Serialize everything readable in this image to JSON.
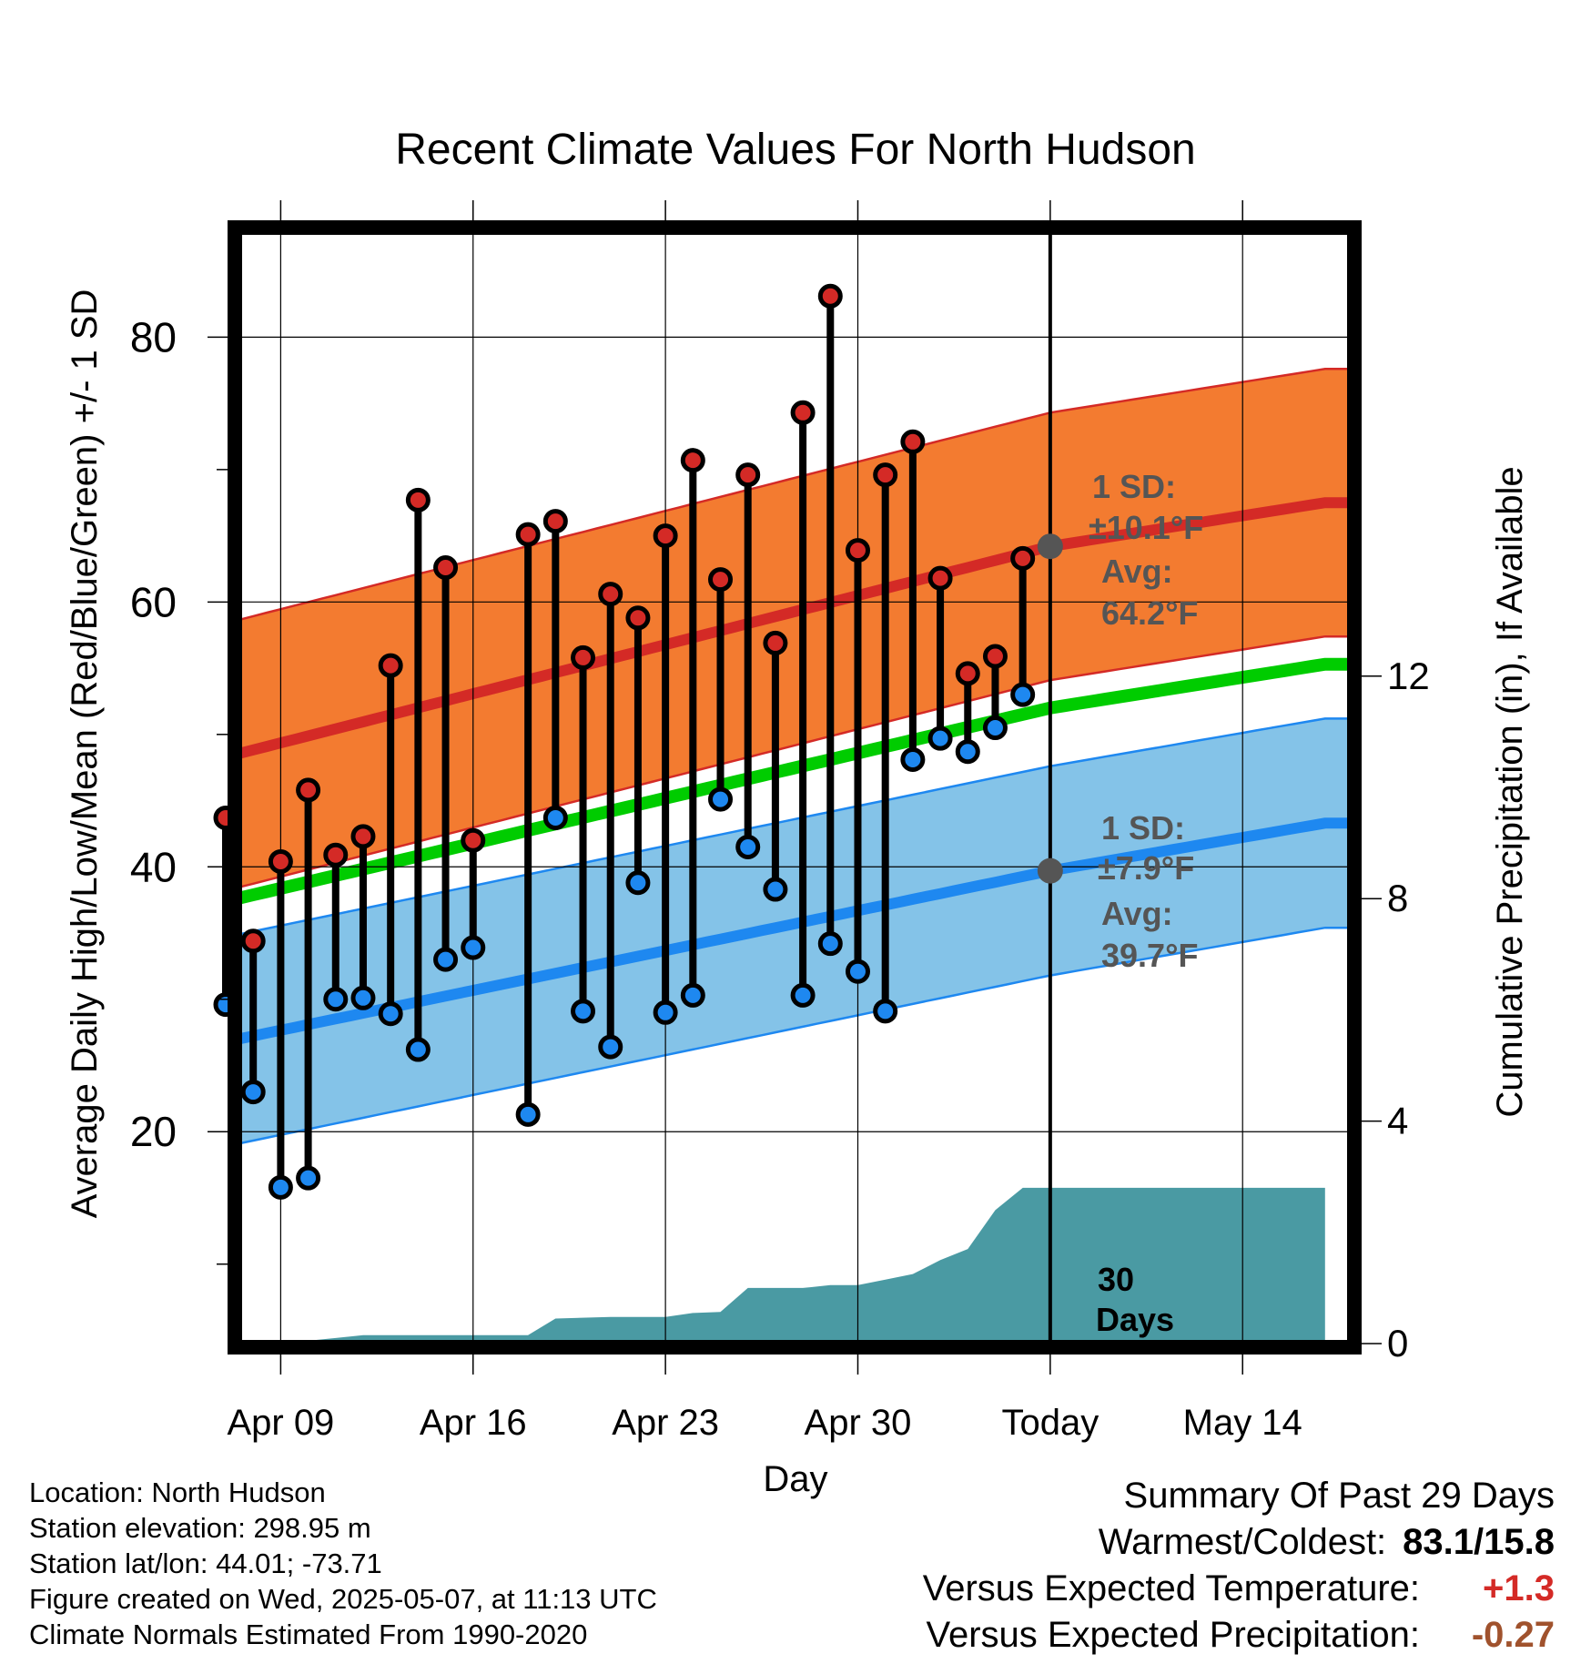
{
  "chart_data": {
    "type": "line",
    "title": "Recent Climate Values For North Hudson",
    "xlabel": "Day",
    "ylabel": "Average Daily High/Low/Mean (Red/Blue/Green) +/- 1 SD",
    "y2label": "Cumulative Precipitation (in), If Available",
    "x_range_days": [
      -30,
      11
    ],
    "x_tick_labels": [
      {
        "day": -28,
        "label": "Apr 09"
      },
      {
        "day": -21,
        "label": "Apr 16"
      },
      {
        "day": -14,
        "label": "Apr 23"
      },
      {
        "day": -7,
        "label": "Apr 30"
      },
      {
        "day": 0,
        "label": "Today"
      },
      {
        "day": 7,
        "label": "May 14"
      }
    ],
    "ylim": [
      4,
      88
    ],
    "y_ticks": [
      20,
      40,
      60,
      80
    ],
    "y2lim": [
      0,
      20
    ],
    "y2_ticks": [
      0,
      4,
      8,
      12
    ],
    "grid": true,
    "today_line_day": 0,
    "observed_days": [
      -30,
      -29,
      -28,
      -27,
      -26,
      -25,
      -24,
      -23,
      -22,
      -21,
      -19,
      -18,
      -17,
      -16,
      -15,
      -14,
      -13,
      -12,
      -11,
      -10,
      -9,
      -8,
      -7,
      -6,
      -5,
      -4,
      -3,
      -2,
      -1
    ],
    "series": [
      {
        "name": "High",
        "color": "#d62728",
        "values": [
          43.7,
          34.4,
          40.4,
          45.8,
          40.9,
          42.3,
          55.2,
          67.7,
          62.6,
          42.0,
          65.1,
          66.1,
          55.8,
          60.6,
          58.8,
          65.0,
          70.7,
          61.7,
          69.6,
          56.9,
          74.3,
          83.1,
          63.9,
          69.6,
          72.1,
          61.8,
          54.6,
          55.9,
          63.3
        ]
      },
      {
        "name": "Low",
        "color": "#1e88e5",
        "values": [
          29.6,
          23.0,
          15.8,
          16.5,
          30.0,
          30.1,
          28.9,
          26.2,
          33.0,
          33.9,
          21.3,
          43.7,
          29.1,
          26.4,
          38.8,
          29.0,
          30.3,
          45.1,
          41.5,
          38.3,
          30.3,
          34.2,
          32.1,
          29.1,
          48.1,
          49.7,
          48.7,
          50.5,
          53.0
        ]
      }
    ],
    "normals": {
      "high_avg": {
        "day": [
          -30,
          0,
          10
        ],
        "values": [
          48.3,
          64.2,
          67.5
        ]
      },
      "high_sd": 10.1,
      "mean_avg": {
        "day": [
          -30,
          0,
          10
        ],
        "values": [
          37.4,
          52.0,
          55.3
        ]
      },
      "low_avg": {
        "day": [
          -30,
          0,
          10
        ],
        "values": [
          26.8,
          39.7,
          43.3
        ]
      },
      "low_sd": 7.9
    },
    "precip_cumulative": {
      "day": [
        -30,
        -28,
        -27,
        -26,
        -25,
        -21,
        -19,
        -18,
        -16,
        -14,
        -13,
        -12,
        -11,
        -9,
        -8,
        -7,
        -6,
        -5,
        -4,
        -3,
        -2,
        -1,
        0,
        10
      ],
      "values": [
        0,
        0,
        0.05,
        0.1,
        0.15,
        0.15,
        0.15,
        0.45,
        0.48,
        0.48,
        0.55,
        0.57,
        1.0,
        1.0,
        1.05,
        1.05,
        1.15,
        1.25,
        1.5,
        1.7,
        2.4,
        2.8,
        2.8,
        2.8
      ]
    },
    "annotations": {
      "high_sd_label": "1 SD:",
      "high_sd_value": "±10.1°F",
      "high_avg_label": "Avg:",
      "high_avg_value": "64.2°F",
      "low_sd_label": "1 SD:",
      "low_sd_value": "±7.9°F",
      "low_avg_label": "Avg:",
      "low_avg_value": "39.7°F",
      "days_value": "30",
      "days_label": "Days"
    },
    "colors": {
      "high_band": "#f37b30",
      "high_line": "#d42a26",
      "low_band": "#84c3e8",
      "low_line": "#1e88f0",
      "mean_line": "#00cc00",
      "precip": "#4a9aa3",
      "annotation": "#555555",
      "high_marker": "#d42a26",
      "low_marker": "#1e88f0"
    }
  },
  "metadata": {
    "location": "Location: North Hudson",
    "elevation": "Station elevation: 298.95 m",
    "latlon": "Station lat/lon: 44.01; -73.71",
    "created": "Figure created on Wed, 2025-05-07, at 11:13 UTC",
    "normals": "Climate Normals Estimated From 1990-2020"
  },
  "summary": {
    "heading": "Summary Of Past 29 Days",
    "warmest_coldest_label": "Warmest/Coldest:",
    "warmest_coldest_value": "83.1/15.8",
    "temp_label": "Versus Expected Temperature:",
    "temp_value": "+1.3",
    "temp_color": "#d42a26",
    "precip_label": "Versus Expected Precipitation:",
    "precip_value": "-0.27",
    "precip_color": "#a0522d"
  }
}
